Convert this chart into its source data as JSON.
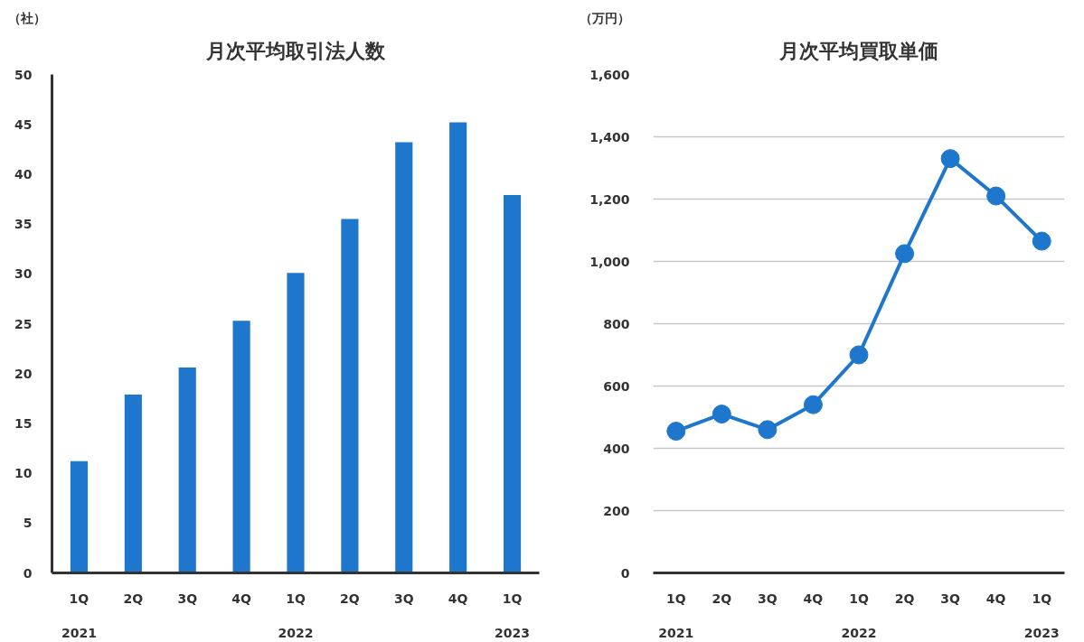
{
  "chart_data": [
    {
      "type": "bar",
      "title": "月次平均取引法人数",
      "ylabel": "（社）",
      "categories": [
        "1Q\n2021",
        "2Q",
        "3Q",
        "4Q",
        "1Q\n2022",
        "2Q",
        "3Q",
        "4Q",
        "1Q\n2023"
      ],
      "values": [
        11.2,
        17.9,
        20.6,
        25.3,
        30.1,
        35.5,
        43.2,
        45.2,
        37.9
      ],
      "color": "#1f77cd",
      "ylim": [
        0,
        50
      ],
      "yticks": [
        0,
        5,
        10,
        15,
        20,
        25,
        30,
        35,
        40,
        45,
        50
      ],
      "grid": false
    },
    {
      "type": "line",
      "title": "月次平均買取単価",
      "ylabel": "（万円）",
      "categories": [
        "1Q\n2021",
        "2Q",
        "3Q",
        "4Q",
        "1Q\n2022",
        "2Q",
        "3Q",
        "4Q",
        "1Q\n2023"
      ],
      "values": [
        455,
        510,
        460,
        540,
        700,
        1025,
        1330,
        1210,
        1065
      ],
      "color": "#1f77cd",
      "ylim": [
        0,
        1600
      ],
      "yticks": [
        0,
        200,
        400,
        600,
        800,
        {
          "value": 1000,
          "label": "1,000"
        },
        {
          "value": 1200,
          "label": "1,200"
        },
        {
          "value": 1400,
          "label": "1,400"
        },
        {
          "value": 1600,
          "label": "1,600"
        }
      ],
      "grid": "y",
      "marker": "circle",
      "line_style": "solid"
    }
  ]
}
